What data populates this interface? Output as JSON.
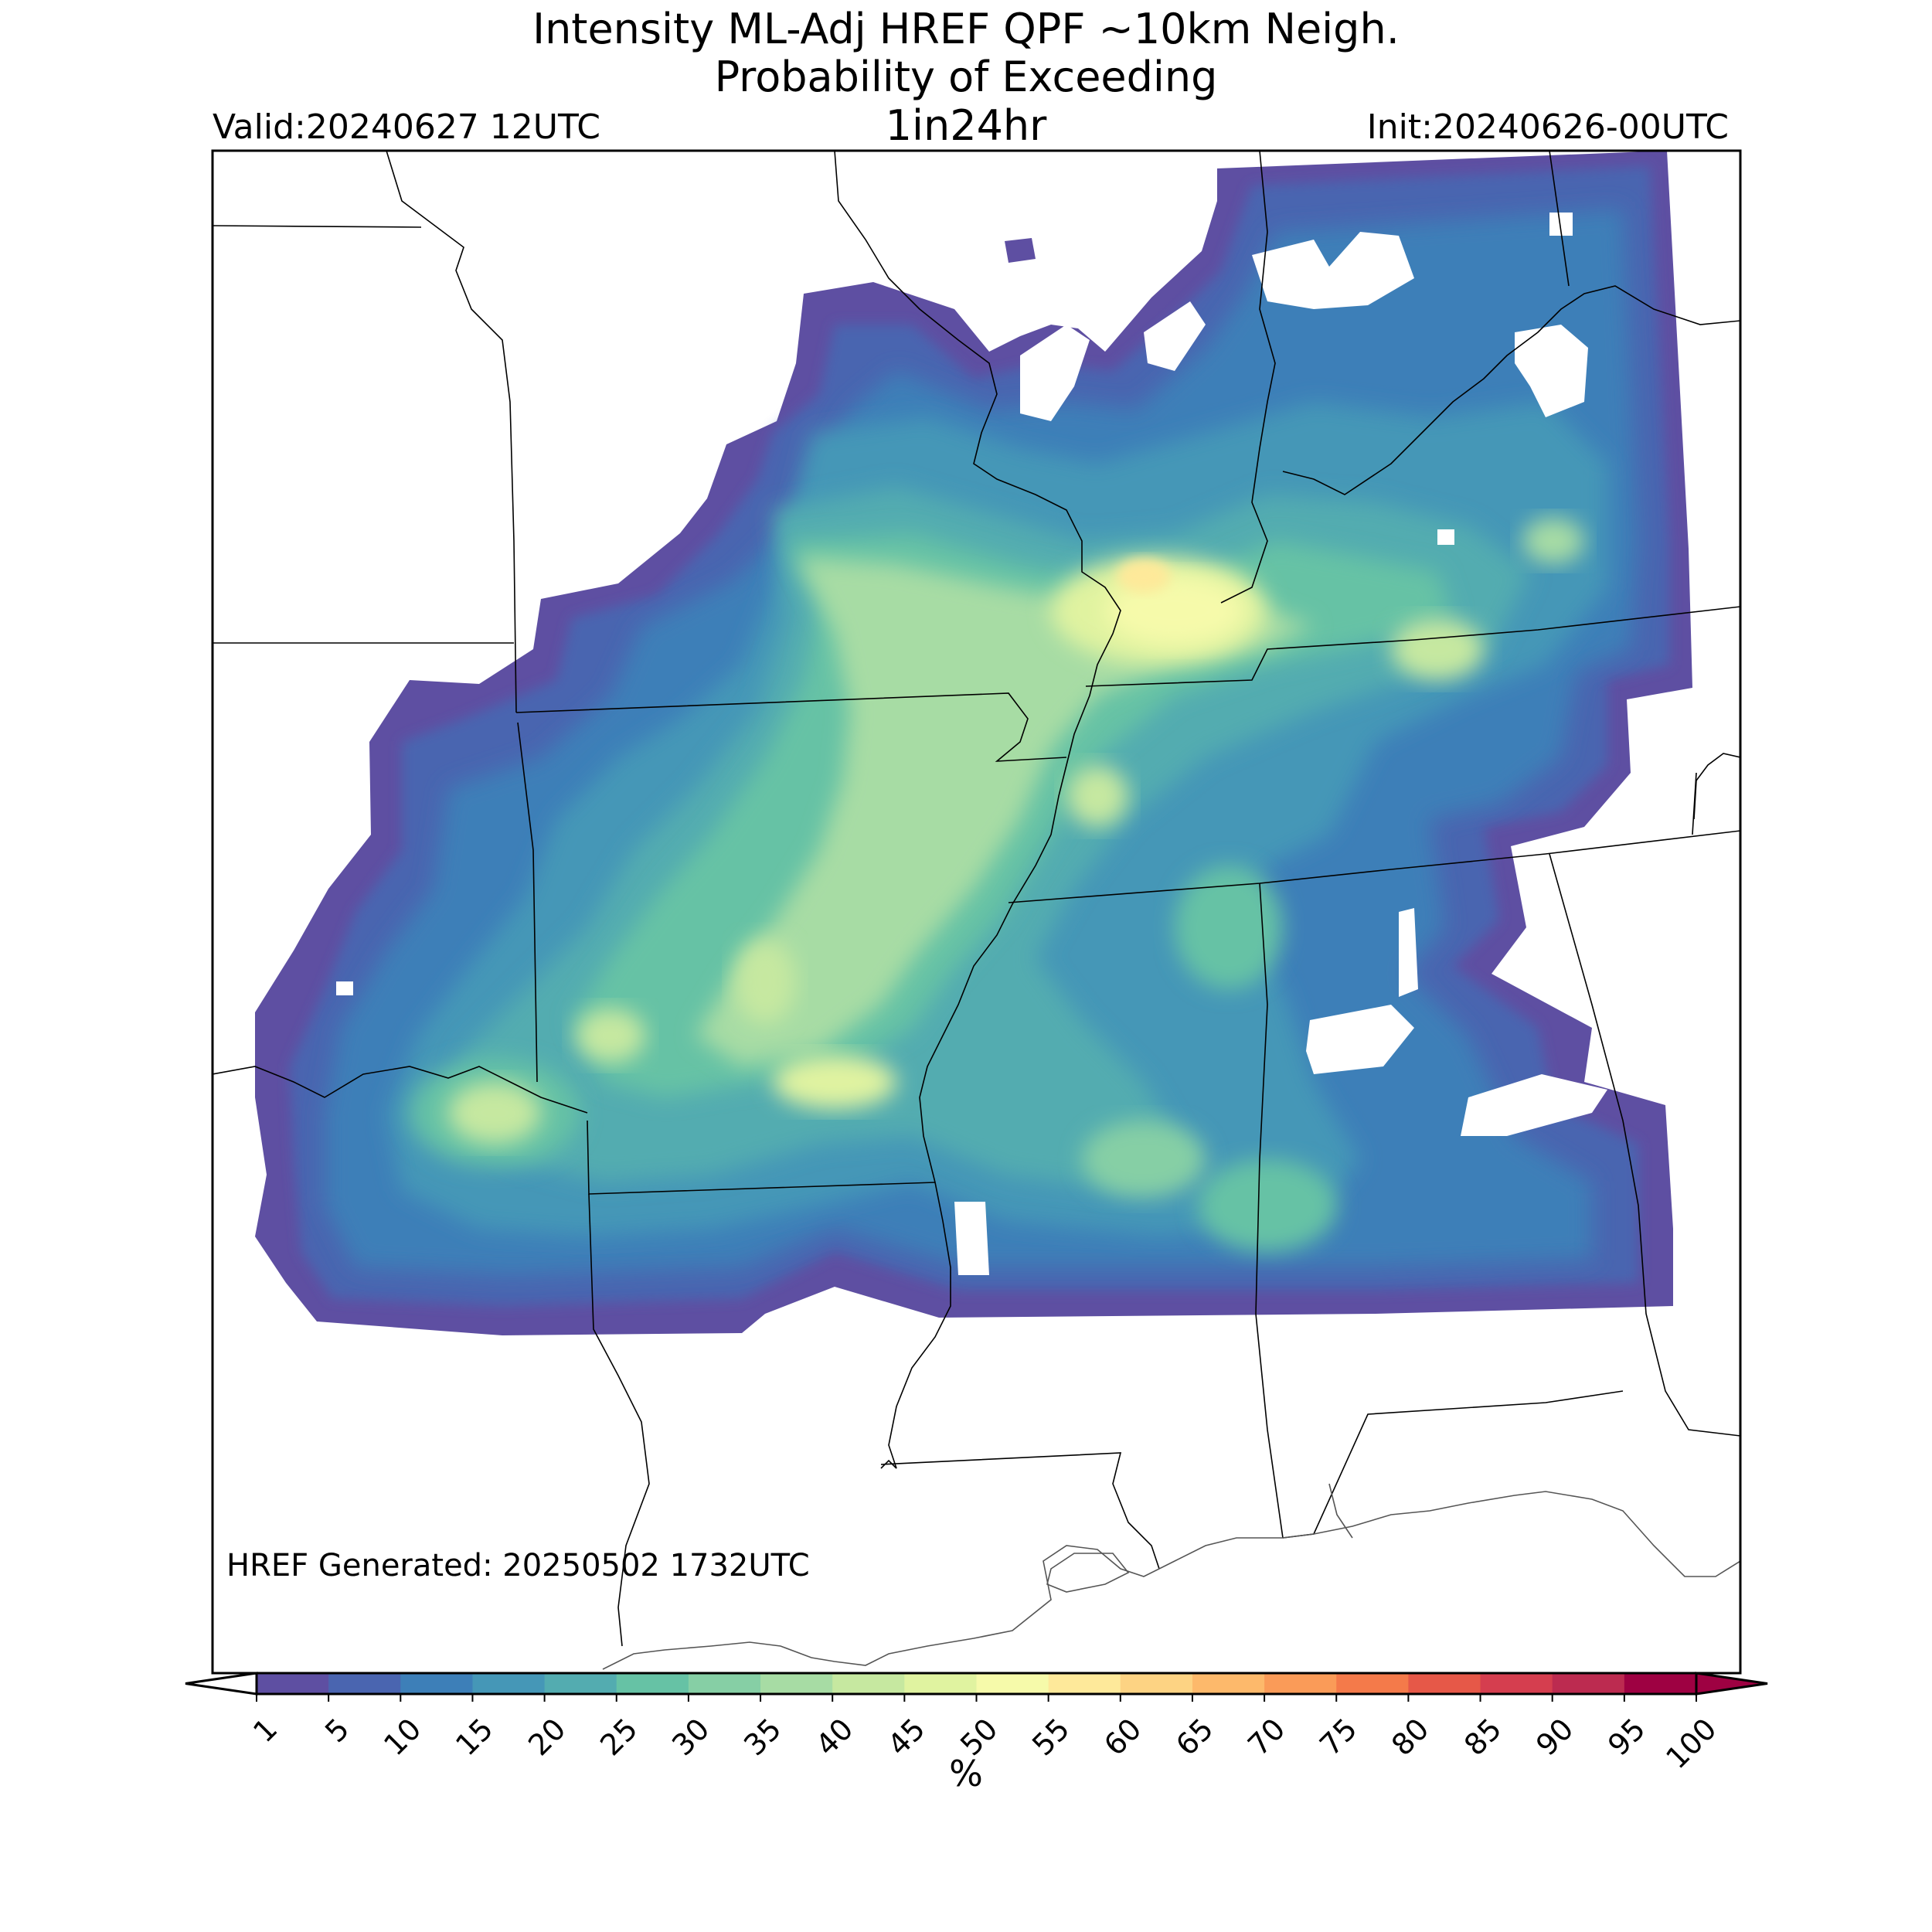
{
  "header": {
    "title_line1": "Intensity ML-Adj HREF QPF ~10km Neigh.",
    "title_line2": "Probability of Exceeding",
    "title_line3": "1in24hr",
    "valid": "Valid:20240627 12UTC",
    "init": "Init:20240626-00UTC"
  },
  "footer": {
    "generated": "HREF Generated: 20250502 1732UTC"
  },
  "colorbar": {
    "unit": "%",
    "ticks": [
      "1",
      "5",
      "10",
      "15",
      "20",
      "25",
      "30",
      "35",
      "40",
      "45",
      "50",
      "55",
      "60",
      "65",
      "70",
      "75",
      "80",
      "85",
      "90",
      "95",
      "100"
    ],
    "colors": [
      "#5e4fa2",
      "#4a65b0",
      "#3d7fb8",
      "#4597b7",
      "#53acb0",
      "#66c2a5",
      "#86cfa5",
      "#a7dca4",
      "#c6e8a0",
      "#e0f3a0",
      "#f6faaa",
      "#fee99a",
      "#fdd383",
      "#fdb96b",
      "#fa9b58",
      "#f47a4a",
      "#e65848",
      "#d53e4f",
      "#bc2b50",
      "#9e0142"
    ],
    "extend_low_color": "#ffffff",
    "extend_high_color": "#9e0142"
  },
  "map": {
    "field": "probability of exceeding 1in24hr",
    "colors": {
      "background": "#ffffff",
      "boundaries": "#000000",
      "coast": "#555555"
    }
  }
}
